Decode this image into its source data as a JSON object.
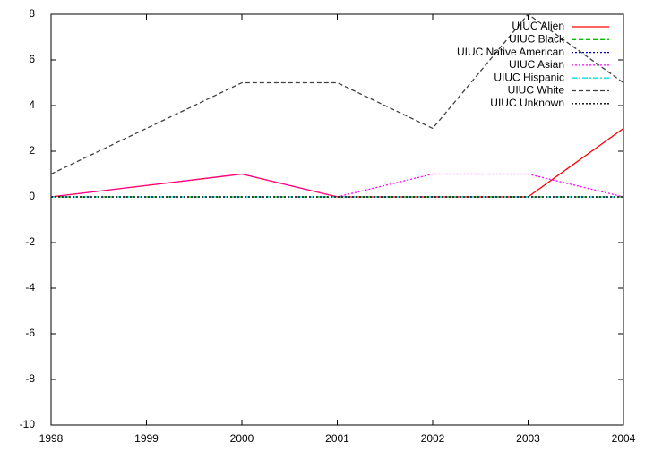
{
  "chart_data": {
    "type": "line",
    "x": [
      1998,
      2000,
      2001,
      2002,
      2003,
      2004
    ],
    "series": [
      {
        "name": "UIUC Alien",
        "color": "#ff0000",
        "style": "solid",
        "values": [
          0,
          1,
          0,
          0,
          0,
          3
        ]
      },
      {
        "name": "UIUC Black",
        "color": "#00c000",
        "style": "dashed",
        "values": [
          0,
          0,
          0,
          0,
          0,
          0
        ]
      },
      {
        "name": "UIUC Native American",
        "color": "#0000c0",
        "style": "dotted",
        "values": [
          0,
          0,
          0,
          0,
          0,
          0
        ]
      },
      {
        "name": "UIUC Asian",
        "color": "#ff00ff",
        "style": "dotted",
        "values": [
          0,
          1,
          0,
          1,
          1,
          0
        ]
      },
      {
        "name": "UIUC Hispanic",
        "color": "#00e0e0",
        "style": "dashdot",
        "values": [
          0,
          0,
          0,
          0,
          0,
          0
        ]
      },
      {
        "name": "UIUC White",
        "color": "#404040",
        "style": "dashed",
        "values": [
          1,
          5,
          5,
          3,
          8,
          5
        ]
      },
      {
        "name": "UIUC Unknown",
        "color": "#000000",
        "style": "dotted",
        "values": [
          0,
          0,
          0,
          0,
          0,
          0
        ]
      }
    ],
    "xlim": [
      1998,
      2004
    ],
    "xticks": [
      1998,
      1999,
      2000,
      2001,
      2002,
      2003,
      2004
    ],
    "ylim": [
      -10,
      8
    ],
    "yticks": [
      -10,
      -8,
      -6,
      -4,
      -2,
      0,
      2,
      4,
      6,
      8
    ],
    "legend": "top-right",
    "grid": false
  }
}
